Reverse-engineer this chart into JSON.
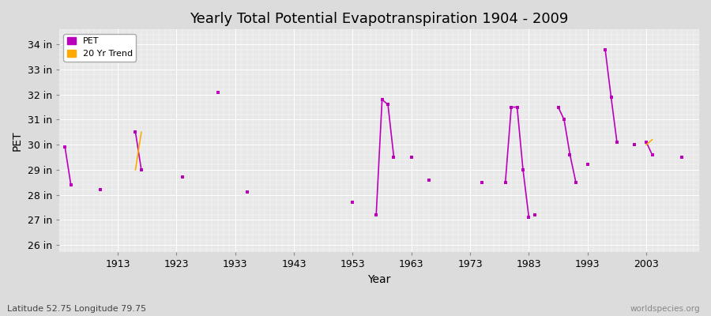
{
  "title": "Yearly Total Potential Evapotranspiration 1904 - 2009",
  "xlabel": "Year",
  "ylabel": "PET",
  "subtitle_lat_lon": "Latitude 52.75 Longitude 79.75",
  "watermark": "worldspecies.org",
  "background_color": "#dcdcdc",
  "plot_bg_color": "#e8e8e8",
  "grid_color": "#ffffff",
  "pet_color": "#bb00bb",
  "trend_color": "#ffaa00",
  "ylim": [
    25.7,
    34.6
  ],
  "yticks": [
    26,
    27,
    28,
    29,
    30,
    31,
    32,
    33,
    34
  ],
  "ytick_labels": [
    "26 in",
    "27 in",
    "28 in",
    "29 in",
    "30 in",
    "31 in",
    "32 in",
    "33 in",
    "34 in"
  ],
  "xlim": [
    1903,
    2012
  ],
  "xticks": [
    1913,
    1923,
    1933,
    1943,
    1953,
    1963,
    1973,
    1983,
    1993,
    2003
  ],
  "pet_segments": [
    [
      [
        1904,
        29.9
      ],
      [
        1905,
        28.4
      ]
    ],
    [
      [
        1910,
        28.2
      ]
    ],
    [
      [
        1916,
        30.5
      ],
      [
        1917,
        29.0
      ]
    ],
    [
      [
        1924,
        28.7
      ]
    ],
    [
      [
        1930,
        32.1
      ]
    ],
    [
      [
        1935,
        28.1
      ]
    ],
    [
      [
        1953,
        27.7
      ]
    ],
    [
      [
        1957,
        27.2
      ],
      [
        1958,
        31.8
      ],
      [
        1959,
        31.6
      ],
      [
        1960,
        29.5
      ]
    ],
    [
      [
        1963,
        29.5
      ]
    ],
    [
      [
        1966,
        28.6
      ]
    ],
    [
      [
        1975,
        28.5
      ]
    ],
    [
      [
        1979,
        28.5
      ],
      [
        1980,
        31.5
      ],
      [
        1981,
        31.5
      ],
      [
        1982,
        29.0
      ],
      [
        1983,
        27.1
      ]
    ],
    [
      [
        1984,
        27.2
      ]
    ],
    [
      [
        1988,
        31.5
      ],
      [
        1989,
        31.0
      ],
      [
        1990,
        29.6
      ],
      [
        1991,
        28.5
      ]
    ],
    [
      [
        1993,
        29.2
      ]
    ],
    [
      [
        1996,
        33.8
      ],
      [
        1997,
        31.9
      ],
      [
        1998,
        30.1
      ]
    ],
    [
      [
        2001,
        30.0
      ]
    ],
    [
      [
        2003,
        30.1
      ],
      [
        2004,
        29.6
      ]
    ],
    [
      [
        2009,
        29.5
      ]
    ]
  ],
  "trend_segments": [
    [
      [
        1916,
        29.0
      ],
      [
        1917,
        30.5
      ]
    ],
    [
      [
        2003,
        30.0
      ],
      [
        2004,
        30.2
      ]
    ]
  ]
}
